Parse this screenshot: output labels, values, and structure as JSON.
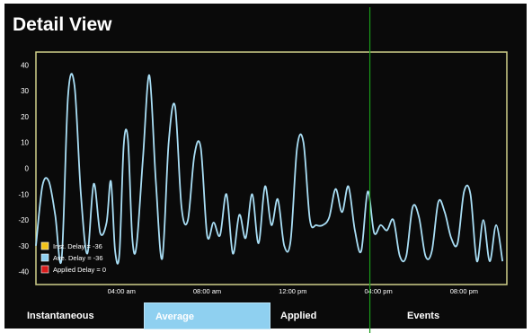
{
  "header": {
    "title": "Detail View"
  },
  "tabs": [
    {
      "label": "Instantaneous",
      "active": false
    },
    {
      "label": "Average",
      "active": true
    },
    {
      "label": "Applied",
      "active": false
    },
    {
      "label": "Events",
      "active": false
    }
  ],
  "colors": {
    "background": "#0a0a0a",
    "plot_border": "#cfcf8a",
    "series_line": "#a9def5",
    "cursor_line": "#1a9a1a",
    "tab_active": "#8fd0f0"
  },
  "chart_data": {
    "type": "line",
    "title": "",
    "xlabel": "",
    "ylabel": "",
    "ylim": [
      -45,
      45
    ],
    "yticks": [
      40,
      30,
      20,
      10,
      0,
      -10,
      -20,
      -30,
      -40
    ],
    "ytick_labels": [
      "40",
      "30",
      "20",
      "10",
      "0",
      "-10",
      "-20",
      "-30",
      "-40"
    ],
    "xlim": [
      0.0,
      22.0
    ],
    "xticks": [
      4,
      8,
      12,
      16,
      20
    ],
    "xtick_labels": [
      "04:00 am",
      "08:00 am",
      "12:00 pm",
      "04:00 pm",
      "08:00 pm"
    ],
    "cursor_x": 15.6,
    "grid": false,
    "legend": {
      "position": "bottom-left",
      "entries": [
        {
          "label": "Inst. Delay = -36",
          "color": "#f2c318"
        },
        {
          "label": "Ave. Delay = -36",
          "color": "#8fd0f0"
        },
        {
          "label": "Applied Delay = 0",
          "color": "#d81c1c"
        }
      ]
    },
    "series": [
      {
        "x": [
          0.0,
          0.3,
          0.6,
          0.9,
          1.2,
          1.5,
          1.8,
          2.1,
          2.4,
          2.7,
          3.0,
          3.3,
          3.5,
          3.7,
          3.9,
          4.1,
          4.3,
          4.5,
          4.7,
          5.0,
          5.3,
          5.6,
          5.9,
          6.2,
          6.5,
          6.8,
          7.1,
          7.4,
          7.7,
          8.0,
          8.3,
          8.6,
          8.9,
          9.2,
          9.5,
          9.8,
          10.1,
          10.4,
          10.7,
          11.0,
          11.3,
          11.6,
          11.9,
          12.2,
          12.5,
          12.8,
          13.1,
          13.4,
          13.7,
          14.0,
          14.3,
          14.6,
          14.9,
          15.2,
          15.5,
          15.8,
          16.1,
          16.4,
          16.7,
          17.0,
          17.3,
          17.6,
          17.9,
          18.2,
          18.5,
          18.8,
          19.1,
          19.4,
          19.7,
          20.0,
          20.3,
          20.6,
          20.9,
          21.2,
          21.5,
          21.8
        ],
        "y": [
          -30,
          -7,
          -5,
          -18,
          -35,
          28,
          32,
          -10,
          -33,
          -6,
          -25,
          -21,
          -5,
          -32,
          -33,
          9,
          11,
          -27,
          -30,
          4,
          36,
          -5,
          -35,
          10,
          24,
          -15,
          -20,
          5,
          8,
          -26,
          -21,
          -26,
          -10,
          -33,
          -18,
          -27,
          -10,
          -29,
          -7,
          -22,
          -12,
          -30,
          -28,
          8,
          10,
          -20,
          -22,
          -22,
          -19,
          -8,
          -17,
          -7,
          -24,
          -32,
          -9,
          -25,
          -22,
          -24,
          -20,
          -34,
          -34,
          -15,
          -19,
          -34,
          -32,
          -13,
          -17,
          -27,
          -29,
          -9,
          -10,
          -36,
          -20,
          -36,
          -22,
          -36
        ]
      }
    ]
  }
}
